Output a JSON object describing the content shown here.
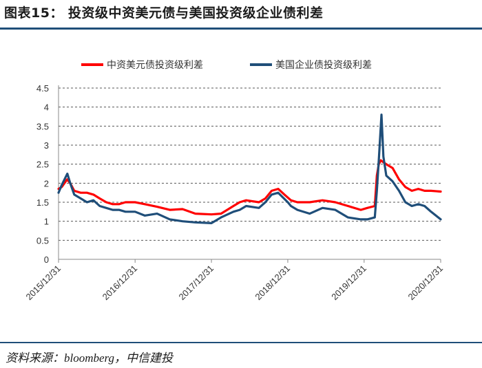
{
  "figure": {
    "title": "图表15： 投资级中资美元债与美国投资级企业债利差",
    "source": "资料来源：bloomberg，中信建投"
  },
  "chart_data": {
    "type": "line",
    "title": "",
    "xlabel": "",
    "ylabel": "",
    "ylim": [
      0,
      4.5
    ],
    "yticks": [
      "0",
      "0.5",
      "1",
      "1.5",
      "2",
      "2.5",
      "3",
      "3.5",
      "4",
      "4.5"
    ],
    "xlim": [
      "2015-12-31",
      "2020-12-31"
    ],
    "xticks": [
      "2015/12/31",
      "2016/12/31",
      "2017/12/31",
      "2018/12/31",
      "2019/12/31",
      "2020/12/31"
    ],
    "grid": "horizontal dashed",
    "legend": "top",
    "colors": {
      "series_1": "#ff0000",
      "series_2": "#1f4e79"
    },
    "series": [
      {
        "name": "中资美元债投资级利差",
        "x": [
          "2015-12-31",
          "2016-01-15",
          "2016-02-10",
          "2016-02-25",
          "2016-03-15",
          "2016-04-15",
          "2016-05-15",
          "2016-06-15",
          "2016-07-15",
          "2016-08-15",
          "2016-09-15",
          "2016-10-15",
          "2016-11-15",
          "2016-12-31",
          "2017-02-15",
          "2017-04-15",
          "2017-06-15",
          "2017-08-15",
          "2017-10-15",
          "2017-12-31",
          "2018-02-15",
          "2018-04-15",
          "2018-05-15",
          "2018-06-15",
          "2018-08-15",
          "2018-09-15",
          "2018-10-15",
          "2018-11-15",
          "2018-12-15",
          "2019-01-15",
          "2019-02-15",
          "2019-04-15",
          "2019-06-15",
          "2019-08-15",
          "2019-10-15",
          "2019-12-15",
          "2020-01-15",
          "2020-02-20",
          "2020-03-01",
          "2020-03-10",
          "2020-03-20",
          "2020-04-01",
          "2020-04-15",
          "2020-05-15",
          "2020-06-15",
          "2020-07-15",
          "2020-08-15",
          "2020-09-15",
          "2020-10-15",
          "2020-11-15",
          "2020-12-31"
        ],
        "values": [
          1.85,
          1.9,
          2.1,
          2.0,
          1.8,
          1.75,
          1.75,
          1.7,
          1.6,
          1.5,
          1.45,
          1.45,
          1.5,
          1.5,
          1.45,
          1.38,
          1.3,
          1.32,
          1.2,
          1.18,
          1.2,
          1.4,
          1.5,
          1.55,
          1.5,
          1.6,
          1.8,
          1.85,
          1.7,
          1.55,
          1.5,
          1.5,
          1.55,
          1.5,
          1.4,
          1.3,
          1.35,
          1.4,
          2.2,
          2.5,
          2.6,
          2.55,
          2.5,
          2.4,
          2.1,
          1.9,
          1.8,
          1.85,
          1.8,
          1.8,
          1.78
        ]
      },
      {
        "name": "美国企业债投资级利差",
        "x": [
          "2015-12-31",
          "2016-01-15",
          "2016-02-11",
          "2016-02-25",
          "2016-03-15",
          "2016-04-15",
          "2016-05-15",
          "2016-06-15",
          "2016-07-15",
          "2016-08-15",
          "2016-09-15",
          "2016-10-15",
          "2016-11-15",
          "2016-12-31",
          "2017-02-15",
          "2017-04-15",
          "2017-06-15",
          "2017-08-15",
          "2017-10-15",
          "2017-12-31",
          "2018-02-15",
          "2018-04-15",
          "2018-05-15",
          "2018-06-15",
          "2018-08-15",
          "2018-09-15",
          "2018-10-15",
          "2018-11-15",
          "2018-12-31",
          "2019-01-15",
          "2019-02-15",
          "2019-04-15",
          "2019-06-15",
          "2019-08-15",
          "2019-10-15",
          "2019-12-15",
          "2020-01-15",
          "2020-02-20",
          "2020-03-01",
          "2020-03-10",
          "2020-03-23",
          "2020-04-01",
          "2020-04-15",
          "2020-05-15",
          "2020-06-15",
          "2020-07-15",
          "2020-08-15",
          "2020-09-15",
          "2020-10-15",
          "2020-11-15",
          "2020-12-31"
        ],
        "values": [
          1.75,
          1.95,
          2.25,
          2.0,
          1.7,
          1.6,
          1.5,
          1.55,
          1.4,
          1.35,
          1.3,
          1.3,
          1.25,
          1.25,
          1.15,
          1.2,
          1.05,
          1.0,
          0.97,
          0.95,
          1.1,
          1.25,
          1.3,
          1.4,
          1.35,
          1.5,
          1.7,
          1.75,
          1.5,
          1.4,
          1.3,
          1.2,
          1.35,
          1.3,
          1.1,
          1.05,
          1.05,
          1.1,
          1.8,
          2.6,
          3.8,
          2.7,
          2.2,
          2.05,
          1.8,
          1.5,
          1.4,
          1.45,
          1.4,
          1.25,
          1.05
        ]
      }
    ]
  }
}
